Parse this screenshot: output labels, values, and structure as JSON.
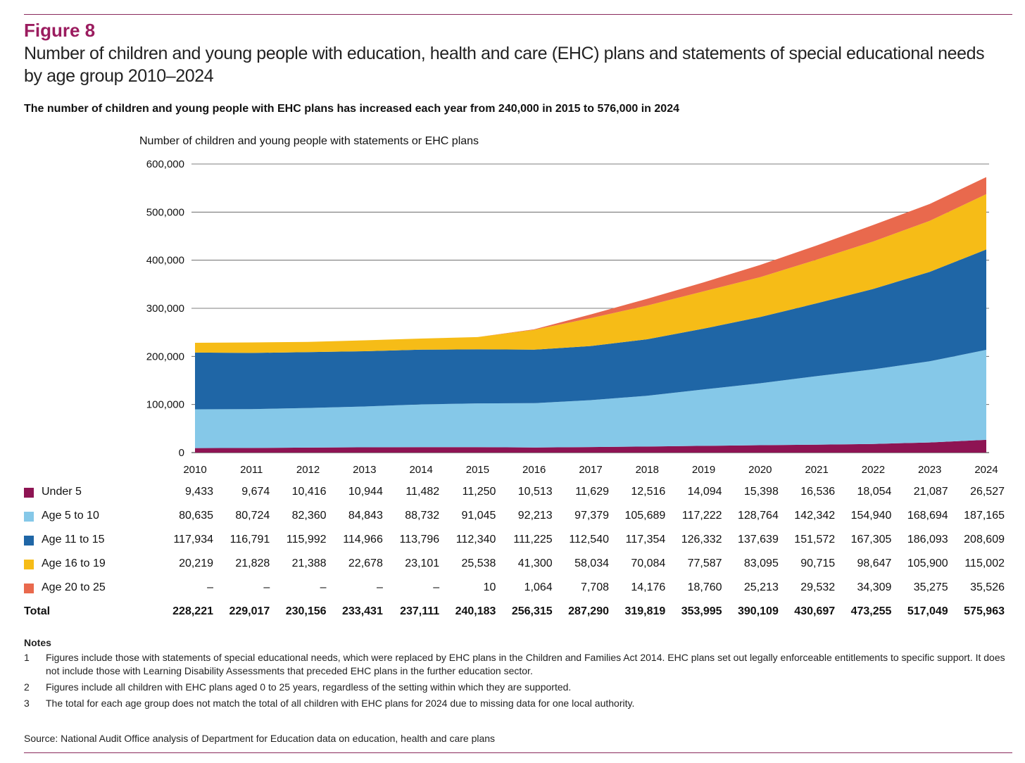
{
  "figure_label": "Figure 8",
  "title": "Number of children and young people with education, health and care (EHC) plans and statements of special educational needs by age group 2010–2024",
  "subtitle": "The number of children and young people with EHC plans has increased each year from 240,000 in 2015 to 576,000 in 2024",
  "chart_data": {
    "type": "area",
    "stacked": true,
    "ylabel": "Number of children and young people with statements or EHC plans",
    "xlabel": "",
    "ylim": [
      0,
      600000
    ],
    "yticks": [
      "0",
      "100,000",
      "200,000",
      "300,000",
      "400,000",
      "500,000",
      "600,000"
    ],
    "ytick_values": [
      0,
      100000,
      200000,
      300000,
      400000,
      500000,
      600000
    ],
    "x": [
      "2010",
      "2011",
      "2012",
      "2013",
      "2014",
      "2015",
      "2016",
      "2017",
      "2018",
      "2019",
      "2020",
      "2021",
      "2022",
      "2023",
      "2024"
    ],
    "grid": "horizontal",
    "series": [
      {
        "name": "Under 5",
        "color": "#8e1453",
        "values": [
          9433,
          9674,
          10416,
          10944,
          11482,
          11250,
          10513,
          11629,
          12516,
          14094,
          15398,
          16536,
          18054,
          21087,
          26527
        ],
        "display": [
          "9,433",
          "9,674",
          "10,416",
          "10,944",
          "11,482",
          "11,250",
          "10,513",
          "11,629",
          "12,516",
          "14,094",
          "15,398",
          "16,536",
          "18,054",
          "21,087",
          "26,527"
        ]
      },
      {
        "name": "Age 5 to 10",
        "color": "#85c8e8",
        "values": [
          80635,
          80724,
          82360,
          84843,
          88732,
          91045,
          92213,
          97379,
          105689,
          117222,
          128764,
          142342,
          154940,
          168694,
          187165
        ],
        "display": [
          "80,635",
          "80,724",
          "82,360",
          "84,843",
          "88,732",
          "91,045",
          "92,213",
          "97,379",
          "105,689",
          "117,222",
          "128,764",
          "142,342",
          "154,940",
          "168,694",
          "187,165"
        ]
      },
      {
        "name": "Age 11 to 15",
        "color": "#1f66a6",
        "values": [
          117934,
          116791,
          115992,
          114966,
          113796,
          112340,
          111225,
          112540,
          117354,
          126332,
          137639,
          151572,
          167305,
          186093,
          208609
        ],
        "display": [
          "117,934",
          "116,791",
          "115,992",
          "114,966",
          "113,796",
          "112,340",
          "111,225",
          "112,540",
          "117,354",
          "126,332",
          "137,639",
          "151,572",
          "167,305",
          "186,093",
          "208,609"
        ]
      },
      {
        "name": "Age 16 to 19",
        "color": "#f6bc17",
        "values": [
          20219,
          21828,
          21388,
          22678,
          23101,
          25538,
          41300,
          58034,
          70084,
          77587,
          83095,
          90715,
          98647,
          105900,
          115002
        ],
        "display": [
          "20,219",
          "21,828",
          "21,388",
          "22,678",
          "23,101",
          "25,538",
          "41,300",
          "58,034",
          "70,084",
          "77,587",
          "83,095",
          "90,715",
          "98,647",
          "105,900",
          "115,002"
        ]
      },
      {
        "name": "Age 20 to 25",
        "color": "#e9694d",
        "values": [
          0,
          0,
          0,
          0,
          0,
          10,
          1064,
          7708,
          14176,
          18760,
          25213,
          29532,
          34309,
          35275,
          35526
        ],
        "display": [
          "–",
          "–",
          "–",
          "–",
          "–",
          "10",
          "1,064",
          "7,708",
          "14,176",
          "18,760",
          "25,213",
          "29,532",
          "34,309",
          "35,275",
          "35,526"
        ]
      }
    ],
    "total": {
      "name": "Total",
      "values": [
        228221,
        229017,
        230156,
        233431,
        237111,
        240183,
        256315,
        287290,
        319819,
        353995,
        390109,
        430697,
        473255,
        517049,
        575963
      ],
      "display": [
        "228,221",
        "229,017",
        "230,156",
        "233,431",
        "237,111",
        "240,183",
        "256,315",
        "287,290",
        "319,819",
        "353,995",
        "390,109",
        "430,697",
        "473,255",
        "517,049",
        "575,963"
      ]
    }
  },
  "notes": {
    "heading": "Notes",
    "items": [
      {
        "num": "1",
        "text": "Figures include those with statements of special educational needs, which were replaced by EHC plans in the Children and Families Act 2014. EHC plans set out legally enforceable entitlements to specific support. It does not include those with Learning Disability Assessments that preceded EHC plans in the further education sector."
      },
      {
        "num": "2",
        "text": "Figures include all children with EHC plans aged 0 to 25 years, regardless of the setting within which they are supported."
      },
      {
        "num": "3",
        "text": "The total for each age group does not match the total of all children with EHC plans for 2024 due to missing data for one local authority."
      }
    ]
  },
  "source": "Source: National Audit Office analysis of Department for Education data on education, health and care plans"
}
